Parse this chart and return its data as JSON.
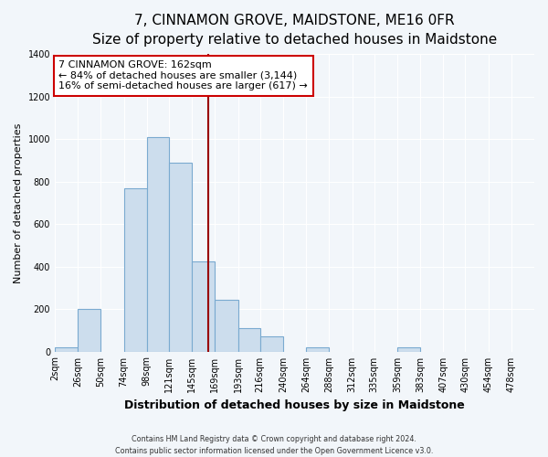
{
  "title": "7, CINNAMON GROVE, MAIDSTONE, ME16 0FR",
  "subtitle": "Size of property relative to detached houses in Maidstone",
  "xlabel": "Distribution of detached houses by size in Maidstone",
  "ylabel": "Number of detached properties",
  "bin_labels": [
    "2sqm",
    "26sqm",
    "50sqm",
    "74sqm",
    "98sqm",
    "121sqm",
    "145sqm",
    "169sqm",
    "193sqm",
    "216sqm",
    "240sqm",
    "264sqm",
    "288sqm",
    "312sqm",
    "335sqm",
    "359sqm",
    "383sqm",
    "407sqm",
    "430sqm",
    "454sqm",
    "478sqm"
  ],
  "bin_edges": [
    2,
    26,
    50,
    74,
    98,
    121,
    145,
    169,
    193,
    216,
    240,
    264,
    288,
    312,
    335,
    359,
    383,
    407,
    430,
    454,
    478,
    502
  ],
  "bar_heights": [
    20,
    200,
    0,
    770,
    1010,
    890,
    425,
    245,
    110,
    70,
    0,
    20,
    0,
    0,
    0,
    20,
    0,
    0,
    0,
    0,
    0
  ],
  "bar_color": "#ccdded",
  "bar_edge_color": "#7aaad0",
  "property_value": 162,
  "vline_color": "#990000",
  "annotation_text": "7 CINNAMON GROVE: 162sqm\n← 84% of detached houses are smaller (3,144)\n16% of semi-detached houses are larger (617) →",
  "annotation_box_facecolor": "#ffffff",
  "annotation_box_edgecolor": "#cc0000",
  "ylim": [
    0,
    1400
  ],
  "yticks": [
    0,
    200,
    400,
    600,
    800,
    1000,
    1200,
    1400
  ],
  "footer_line1": "Contains HM Land Registry data © Crown copyright and database right 2024.",
  "footer_line2": "Contains public sector information licensed under the Open Government Licence v3.0.",
  "bg_color": "#f2f6fa",
  "plot_bg_color": "#f2f6fa",
  "grid_color": "#ffffff",
  "title_fontsize": 11,
  "subtitle_fontsize": 9,
  "ylabel_fontsize": 8,
  "xlabel_fontsize": 9,
  "tick_fontsize": 7,
  "annotation_fontsize": 8
}
